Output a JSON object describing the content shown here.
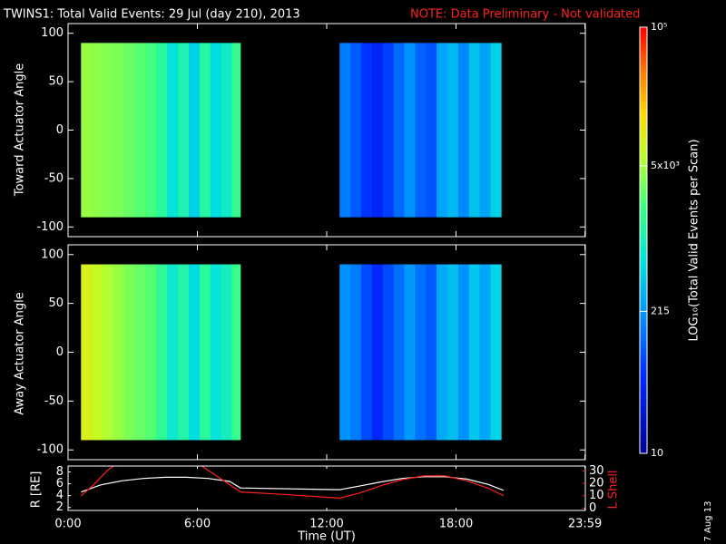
{
  "header": {
    "title": "TWINS1: Total Valid Events: 29 Jul (day 210), 2013",
    "note": "NOTE: Data Preliminary - Not validated",
    "date_stamp": "7 Aug 13"
  },
  "colorbar": {
    "label": "LOG₁₀(Total Valid Events per Scan)",
    "scale": "log",
    "lim": [
      10,
      100000
    ],
    "ticks": [
      10,
      215,
      {
        "value": 5000,
        "label": "5x10³"
      },
      {
        "value": 100000,
        "label": "10⁵"
      }
    ]
  },
  "chart_data": [
    {
      "type": "heatmap",
      "ylabel": "Toward Actuator Angle",
      "xlim": [
        0,
        24
      ],
      "xticks": [
        0,
        6,
        12,
        18,
        23.983
      ],
      "ylim": [
        -110,
        110
      ],
      "yticks": [
        -100,
        -50,
        0,
        50,
        100
      ],
      "angle_range": [
        -90,
        90
      ],
      "bins": [
        0.6,
        1.1,
        1.6,
        2.1,
        2.6,
        3.1,
        3.6,
        4.1,
        4.6,
        5.1,
        5.6,
        6.1,
        6.6,
        7.1,
        7.6,
        8.0,
        12.6,
        13.1,
        13.6,
        14.1,
        14.6,
        15.1,
        15.6,
        16.1,
        16.6,
        17.1,
        17.6,
        18.1,
        18.6,
        19.1,
        19.6,
        20.1
      ],
      "values": [
        4500,
        4200,
        3800,
        3500,
        3000,
        2600,
        2200,
        1500,
        700,
        1200,
        500,
        1400,
        600,
        900,
        1800,
        null,
        150,
        100,
        60,
        45,
        70,
        120,
        200,
        110,
        90,
        260,
        350,
        180,
        400,
        250,
        500,
        350
      ]
    },
    {
      "type": "heatmap",
      "ylabel": "Away Actuator Angle",
      "xlim": [
        0,
        24
      ],
      "xticks": [
        0,
        6,
        12,
        18,
        23.983
      ],
      "ylim": [
        -110,
        110
      ],
      "yticks": [
        -100,
        -50,
        0,
        50,
        100
      ],
      "angle_range": [
        -90,
        90
      ],
      "bins": [
        0.6,
        1.1,
        1.6,
        2.1,
        2.6,
        3.1,
        3.6,
        4.1,
        4.6,
        5.1,
        5.6,
        6.1,
        6.6,
        7.1,
        7.6,
        8.0,
        12.6,
        13.1,
        13.6,
        14.1,
        14.6,
        15.1,
        15.6,
        16.1,
        16.6,
        17.1,
        17.6,
        18.1,
        18.6,
        19.1,
        19.6,
        20.1
      ],
      "values": [
        9000,
        7000,
        5500,
        4500,
        3500,
        3000,
        2500,
        1600,
        800,
        1300,
        600,
        1500,
        700,
        1000,
        1900,
        null,
        200,
        150,
        80,
        50,
        80,
        130,
        220,
        130,
        100,
        280,
        380,
        200,
        420,
        270,
        520,
        380
      ]
    },
    {
      "type": "line",
      "ylabel": "R [RE]",
      "y2label": "L Shell",
      "xlabel": "Time (UT)",
      "xlim": [
        0,
        24
      ],
      "xticks": [
        {
          "value": 0,
          "label": "0:00"
        },
        {
          "value": 6,
          "label": "6:00"
        },
        {
          "value": 12,
          "label": "12:00"
        },
        {
          "value": 18,
          "label": "18:00"
        },
        {
          "value": 23.983,
          "label": "23:59"
        }
      ],
      "ylim": [
        1.5,
        9
      ],
      "yticks": [
        2,
        4,
        6,
        8
      ],
      "y2lim": [
        -2,
        34
      ],
      "y2ticks": [
        0,
        10,
        20,
        30
      ],
      "y2color": "#ff2020",
      "series": [
        {
          "color": "#ffffff",
          "x": [
            0.6,
            1.5,
            2.5,
            3.5,
            4.5,
            5.5,
            6.5,
            7.5,
            8.0,
            12.6,
            13.5,
            14.5,
            15.5,
            16.5,
            17.5,
            18.5,
            19.5,
            20.2
          ],
          "values": [
            4.6,
            5.8,
            6.5,
            6.9,
            7.1,
            7.1,
            6.9,
            6.4,
            5.3,
            5.0,
            5.6,
            6.3,
            6.9,
            7.2,
            7.2,
            6.8,
            5.9,
            4.9
          ]
        },
        {
          "color": "#ff2020",
          "axis": "y2",
          "x": [
            0.6,
            1.2,
            1.8,
            2.1,
            4.0,
            6.2,
            6.8,
            8.0,
            10.0,
            12.6,
            13.5,
            14.5,
            15.5,
            16.5,
            17.5,
            18.5,
            19.5,
            20.2
          ],
          "values": [
            10,
            19,
            30,
            34,
            null,
            34,
            27,
            13,
            11,
            8,
            12,
            18,
            23,
            26,
            26,
            22,
            16,
            10
          ]
        }
      ]
    }
  ]
}
